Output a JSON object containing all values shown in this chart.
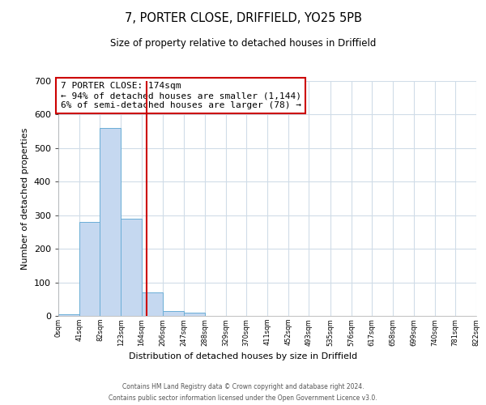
{
  "title": "7, PORTER CLOSE, DRIFFIELD, YO25 5PB",
  "subtitle": "Size of property relative to detached houses in Driffield",
  "xlabel": "Distribution of detached houses by size in Driffield",
  "ylabel": "Number of detached properties",
  "bin_edges": [
    0,
    41,
    82,
    123,
    164,
    206,
    247,
    288,
    329,
    370,
    411,
    452,
    493,
    535,
    576,
    617,
    658,
    699,
    740,
    781,
    822
  ],
  "bar_heights": [
    5,
    280,
    560,
    290,
    70,
    15,
    10,
    0,
    0,
    0,
    0,
    0,
    0,
    0,
    0,
    0,
    0,
    0,
    0,
    0
  ],
  "bar_color": "#c5d8f0",
  "bar_edgecolor": "#6baed6",
  "property_line_x": 174,
  "property_line_color": "#cc0000",
  "ylim": [
    0,
    700
  ],
  "yticks": [
    0,
    100,
    200,
    300,
    400,
    500,
    600,
    700
  ],
  "annotation_line1": "7 PORTER CLOSE: 174sqm",
  "annotation_line2": "← 94% of detached houses are smaller (1,144)",
  "annotation_line3": "6% of semi-detached houses are larger (78) →",
  "annotation_box_edgecolor": "#cc0000",
  "annotation_box_facecolor": "#ffffff",
  "footer_line1": "Contains HM Land Registry data © Crown copyright and database right 2024.",
  "footer_line2": "Contains public sector information licensed under the Open Government Licence v3.0.",
  "background_color": "#ffffff",
  "grid_color": "#d0dce8"
}
